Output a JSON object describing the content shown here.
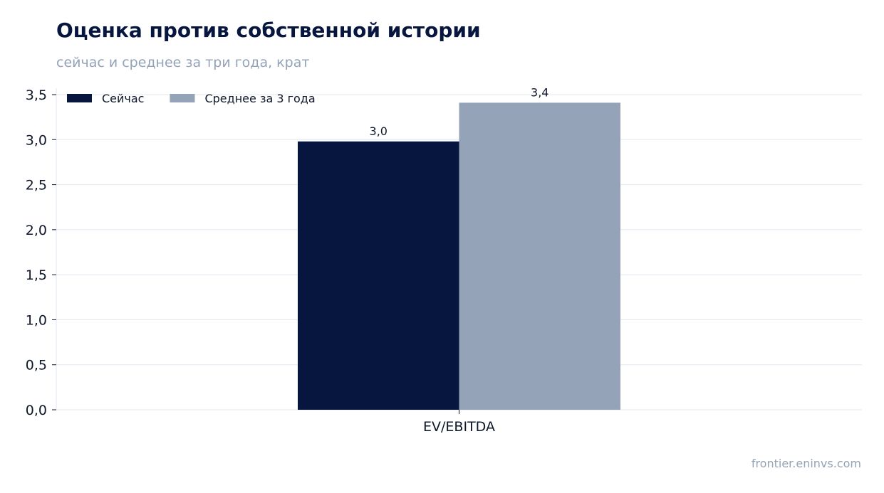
{
  "header": {
    "title": "Оценка против собственной истории",
    "subtitle": "сейчас и среднее за три года, крат"
  },
  "footer": {
    "source": "frontier.eninvs.com"
  },
  "chart_data": {
    "type": "bar",
    "categories": [
      "EV/EBITDA"
    ],
    "series": [
      {
        "name": "Сейчас",
        "values": [
          2.98
        ],
        "value_labels": [
          "3,0"
        ],
        "color": "#07163f"
      },
      {
        "name": "Среднее за 3 года",
        "values": [
          3.41
        ],
        "value_labels": [
          "3,4"
        ],
        "color": "#94a3b8"
      }
    ],
    "ylim": [
      0,
      3.5
    ],
    "yticks": [
      0,
      0.5,
      1.0,
      1.5,
      2.0,
      2.5,
      3.0,
      3.5
    ],
    "ytick_labels": [
      "0,0",
      "0,5",
      "1,0",
      "1,5",
      "2,0",
      "2,5",
      "3,0",
      "3,5"
    ],
    "grid": true,
    "legend_position": "top-left",
    "grid_color": "#e2e8f0"
  }
}
